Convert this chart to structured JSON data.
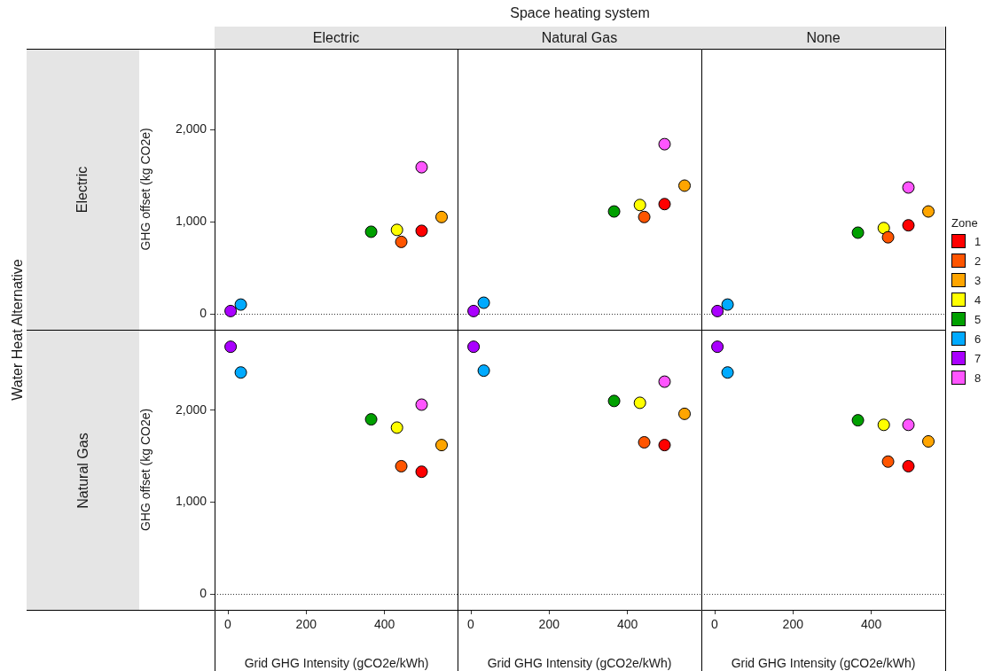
{
  "chart_data": [
    {
      "type": "scatter",
      "title": "Electric",
      "ylabel": "GHG offset (kg CO2e)",
      "annotations": [
        "Space heating system",
        "Water Heat Alternative",
        "Electric",
        "Natural Gas"
      ],
      "xlim": [
        -34,
        589
      ],
      "ylim": [
        -173,
        2875
      ],
      "yticks": [
        {
          "value": 0,
          "label": "0"
        },
        {
          "value": 1000,
          "label": "1,000"
        },
        {
          "value": 2000,
          "label": "2,000"
        }
      ],
      "tick_labels": "y",
      "marker": "circle",
      "ref_lines": [
        {
          "axis": "y",
          "value": 0,
          "line_style": "dotted"
        }
      ],
      "series": [
        {
          "color": "#ff0000",
          "x": [
            495
          ],
          "values": [
            900
          ]
        },
        {
          "color": "#ff5500",
          "x": [
            443
          ],
          "values": [
            780
          ]
        },
        {
          "color": "#ffa500",
          "x": [
            546
          ],
          "values": [
            1050
          ]
        },
        {
          "color": "#ffff00",
          "x": [
            432
          ],
          "values": [
            910
          ]
        },
        {
          "color": "#00a000",
          "x": [
            366
          ],
          "values": [
            890
          ]
        },
        {
          "color": "#00aaff",
          "x": [
            33
          ],
          "values": [
            100
          ]
        },
        {
          "color": "#aa00ff",
          "x": [
            7
          ],
          "values": [
            30
          ]
        },
        {
          "color": "#ff55ff",
          "x": [
            495
          ],
          "values": [
            1590
          ]
        }
      ]
    },
    {
      "type": "scatter",
      "title": "Natural Gas",
      "xlim": [
        -34,
        589
      ],
      "ylim": [
        -173,
        2875
      ],
      "tick_labels": false,
      "marker": "circle",
      "ref_lines": [
        {
          "axis": "y",
          "value": 0,
          "line_style": "dotted"
        }
      ],
      "series": [
        {
          "color": "#ff0000",
          "x": [
            495
          ],
          "values": [
            1190
          ]
        },
        {
          "color": "#ff5500",
          "x": [
            443
          ],
          "values": [
            1050
          ]
        },
        {
          "color": "#ffa500",
          "x": [
            546
          ],
          "values": [
            1390
          ]
        },
        {
          "color": "#ffff00",
          "x": [
            432
          ],
          "values": [
            1180
          ]
        },
        {
          "color": "#00a000",
          "x": [
            366
          ],
          "values": [
            1110
          ]
        },
        {
          "color": "#00aaff",
          "x": [
            33
          ],
          "values": [
            120
          ]
        },
        {
          "color": "#aa00ff",
          "x": [
            7
          ],
          "values": [
            30
          ]
        },
        {
          "color": "#ff55ff",
          "x": [
            495
          ],
          "values": [
            1840
          ]
        }
      ]
    },
    {
      "type": "scatter",
      "title": "None",
      "legend_title": "Zone",
      "legend": "right",
      "xlim": [
        -34,
        589
      ],
      "ylim": [
        -173,
        2875
      ],
      "tick_labels": false,
      "marker": "circle",
      "ref_lines": [
        {
          "axis": "y",
          "value": 0,
          "line_style": "dotted"
        }
      ],
      "series": [
        {
          "name": "1",
          "color": "#ff0000",
          "x": [
            495
          ],
          "values": [
            960
          ]
        },
        {
          "name": "2",
          "color": "#ff5500",
          "x": [
            443
          ],
          "values": [
            830
          ]
        },
        {
          "name": "3",
          "color": "#ffa500",
          "x": [
            546
          ],
          "values": [
            1110
          ]
        },
        {
          "name": "4",
          "color": "#ffff00",
          "x": [
            432
          ],
          "values": [
            930
          ]
        },
        {
          "name": "5",
          "color": "#00a000",
          "x": [
            366
          ],
          "values": [
            880
          ]
        },
        {
          "name": "6",
          "color": "#00aaff",
          "x": [
            33
          ],
          "values": [
            100
          ]
        },
        {
          "name": "7",
          "color": "#aa00ff",
          "x": [
            7
          ],
          "values": [
            30
          ]
        },
        {
          "name": "8",
          "color": "#ff55ff",
          "x": [
            495
          ],
          "values": [
            1370
          ]
        }
      ]
    },
    {
      "type": "scatter",
      "ylabel": "GHG offset (kg CO2e)",
      "xlabel": "Grid GHG Intensity (gCO2e/kWh)",
      "xlim": [
        -34,
        589
      ],
      "xticks": [
        0,
        200,
        400
      ],
      "ylim": [
        -173,
        2875
      ],
      "yticks": [
        {
          "value": 0,
          "label": "0"
        },
        {
          "value": 1000,
          "label": "1,000"
        },
        {
          "value": 2000,
          "label": "2,000"
        }
      ],
      "marker": "circle",
      "ref_lines": [
        {
          "axis": "y",
          "value": 0,
          "line_style": "dotted"
        }
      ],
      "series": [
        {
          "color": "#ff0000",
          "x": [
            495
          ],
          "values": [
            1330
          ]
        },
        {
          "color": "#ff5500",
          "x": [
            443
          ],
          "values": [
            1390
          ]
        },
        {
          "color": "#ffa500",
          "x": [
            546
          ],
          "values": [
            1620
          ]
        },
        {
          "color": "#ffff00",
          "x": [
            432
          ],
          "values": [
            1810
          ]
        },
        {
          "color": "#00a000",
          "x": [
            366
          ],
          "values": [
            1900
          ]
        },
        {
          "color": "#00aaff",
          "x": [
            33
          ],
          "values": [
            2410
          ]
        },
        {
          "color": "#aa00ff",
          "x": [
            7
          ],
          "values": [
            2690
          ]
        },
        {
          "color": "#ff55ff",
          "x": [
            495
          ],
          "values": [
            2060
          ]
        }
      ]
    },
    {
      "type": "scatter",
      "xlabel": "Grid GHG Intensity (gCO2e/kWh)",
      "xlim": [
        -34,
        589
      ],
      "xticks": [
        0,
        200,
        400
      ],
      "ylim": [
        -173,
        2875
      ],
      "tick_labels": "x",
      "marker": "circle",
      "ref_lines": [
        {
          "axis": "y",
          "value": 0,
          "line_style": "dotted"
        }
      ],
      "series": [
        {
          "color": "#ff0000",
          "x": [
            495
          ],
          "values": [
            1620
          ]
        },
        {
          "color": "#ff5500",
          "x": [
            443
          ],
          "values": [
            1650
          ]
        },
        {
          "color": "#ffa500",
          "x": [
            546
          ],
          "values": [
            1960
          ]
        },
        {
          "color": "#ffff00",
          "x": [
            432
          ],
          "values": [
            2080
          ]
        },
        {
          "color": "#00a000",
          "x": [
            366
          ],
          "values": [
            2100
          ]
        },
        {
          "color": "#00aaff",
          "x": [
            33
          ],
          "values": [
            2430
          ]
        },
        {
          "color": "#aa00ff",
          "x": [
            7
          ],
          "values": [
            2690
          ]
        },
        {
          "color": "#ff55ff",
          "x": [
            495
          ],
          "values": [
            2310
          ]
        }
      ]
    },
    {
      "type": "scatter",
      "xlabel": "Grid GHG Intensity (gCO2e/kWh)",
      "xlim": [
        -34,
        589
      ],
      "xticks": [
        0,
        200,
        400
      ],
      "ylim": [
        -173,
        2875
      ],
      "tick_labels": "x",
      "marker": "circle",
      "ref_lines": [
        {
          "axis": "y",
          "value": 0,
          "line_style": "dotted"
        }
      ],
      "series": [
        {
          "color": "#ff0000",
          "x": [
            495
          ],
          "values": [
            1390
          ]
        },
        {
          "color": "#ff5500",
          "x": [
            443
          ],
          "values": [
            1440
          ]
        },
        {
          "color": "#ffa500",
          "x": [
            546
          ],
          "values": [
            1660
          ]
        },
        {
          "color": "#ffff00",
          "x": [
            432
          ],
          "values": [
            1840
          ]
        },
        {
          "color": "#00a000",
          "x": [
            366
          ],
          "values": [
            1890
          ]
        },
        {
          "color": "#00aaff",
          "x": [
            33
          ],
          "values": [
            2410
          ]
        },
        {
          "color": "#aa00ff",
          "x": [
            7
          ],
          "values": [
            2690
          ]
        },
        {
          "color": "#ff55ff",
          "x": [
            495
          ],
          "values": [
            1840
          ]
        }
      ]
    }
  ]
}
